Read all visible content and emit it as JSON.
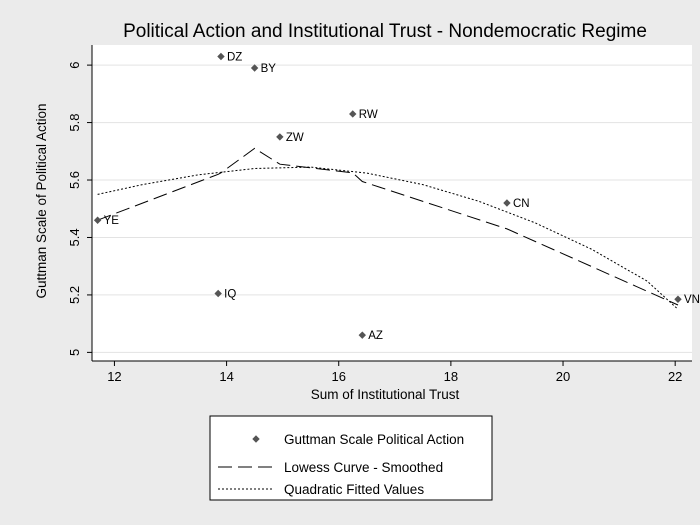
{
  "chart_data": {
    "type": "scatter",
    "title": "Political Action and Institutional Trust - Nondemocratic Regime",
    "xlabel": "Sum of Institutional Trust",
    "ylabel": "Guttman Scale of Political Action",
    "xlim": [
      11.6,
      22.3
    ],
    "ylim": [
      4.97,
      6.07
    ],
    "xticks": [
      12,
      14,
      16,
      18,
      20,
      22
    ],
    "yticks": [
      5,
      5.2,
      5.4,
      5.6,
      5.8,
      6
    ],
    "ytick_labels": [
      "5",
      "5.2",
      "5.4",
      "5.6",
      "5.8",
      "6"
    ],
    "grid": true,
    "legend_position": "bottom",
    "points": [
      {
        "label": "DZ",
        "x": 13.9,
        "y": 6.03
      },
      {
        "label": "BY",
        "x": 14.5,
        "y": 5.99
      },
      {
        "label": "RW",
        "x": 16.25,
        "y": 5.83
      },
      {
        "label": "ZW",
        "x": 14.95,
        "y": 5.75
      },
      {
        "label": "CN",
        "x": 19.0,
        "y": 5.52
      },
      {
        "label": "YE",
        "x": 11.7,
        "y": 5.46
      },
      {
        "label": "IQ",
        "x": 13.85,
        "y": 5.205
      },
      {
        "label": "AZ",
        "x": 16.42,
        "y": 5.06
      },
      {
        "label": "VN",
        "x": 22.05,
        "y": 5.185
      }
    ],
    "series": [
      {
        "name": "Guttman Scale Political Action",
        "style": "markers"
      },
      {
        "name": "Lowess Curve - Smoothed",
        "style": "dashed",
        "x": [
          11.7,
          13.85,
          13.9,
          14.5,
          14.95,
          16.25,
          16.42,
          19.0,
          22.05
        ],
        "y": [
          5.46,
          5.62,
          5.625,
          5.71,
          5.655,
          5.625,
          5.595,
          5.43,
          5.165
        ]
      },
      {
        "name": "Quadratic Fitted Values",
        "style": "dotted",
        "x": [
          11.7,
          12.5,
          13.5,
          14.5,
          15.5,
          16.5,
          17.5,
          18.5,
          19.5,
          20.5,
          21.5,
          22.05
        ],
        "y": [
          5.55,
          5.584,
          5.618,
          5.64,
          5.645,
          5.624,
          5.584,
          5.526,
          5.451,
          5.36,
          5.248,
          5.15
        ]
      }
    ]
  }
}
